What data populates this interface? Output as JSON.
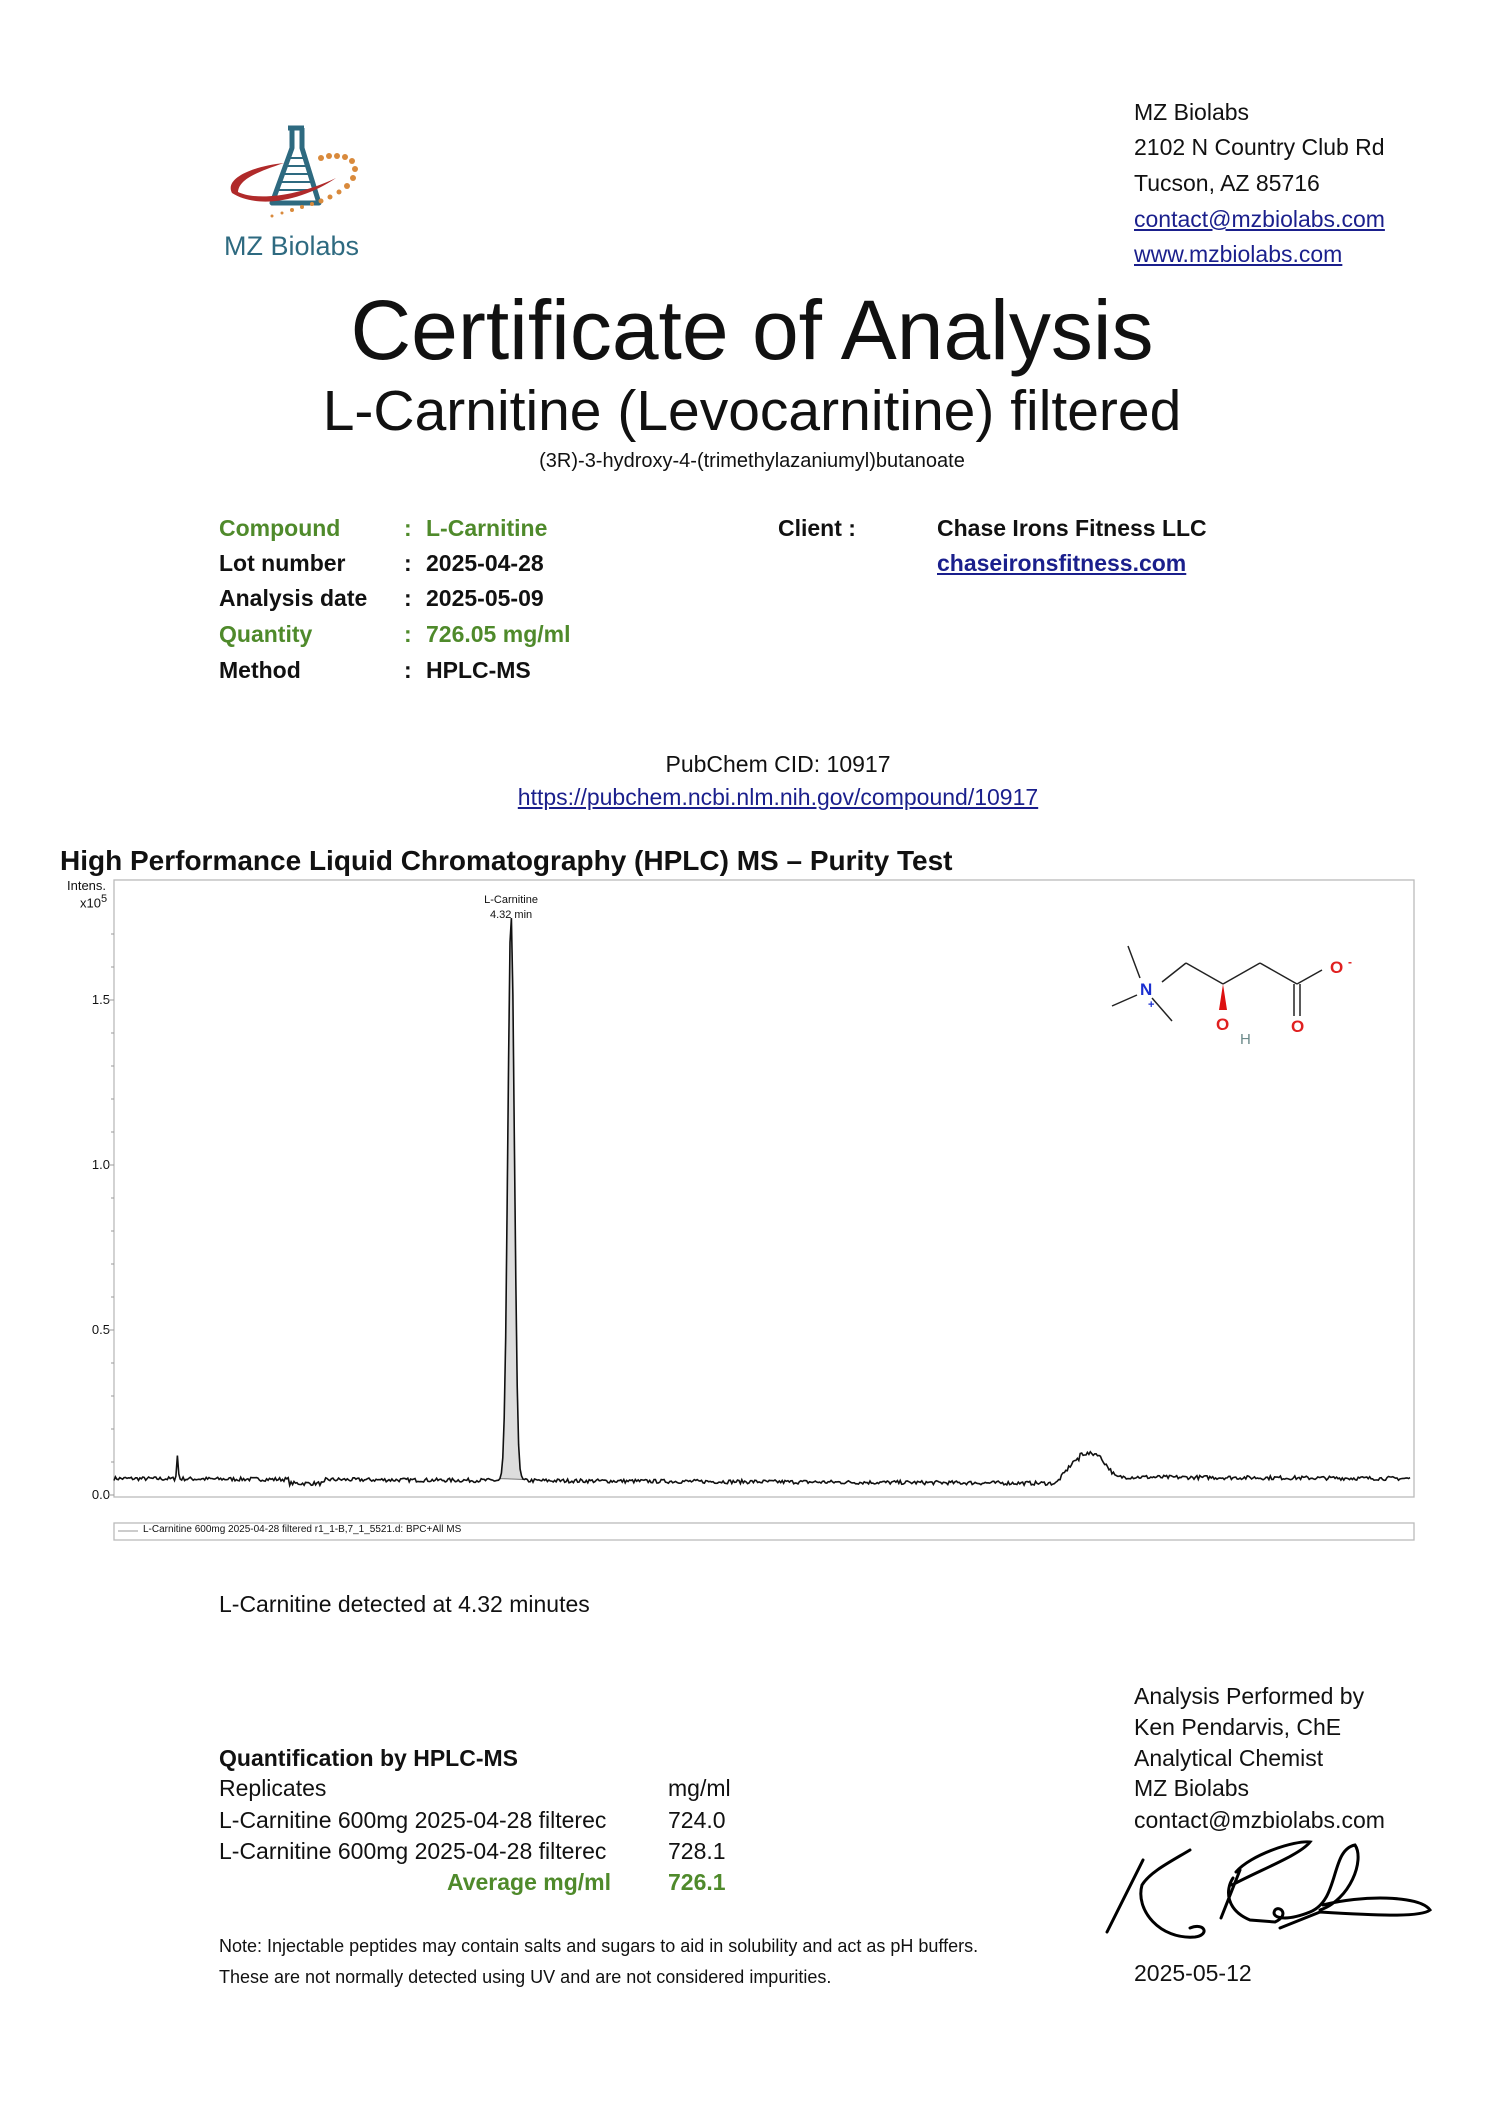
{
  "company": {
    "logo_text": "MZ Biolabs",
    "address_lines": [
      "MZ Biolabs",
      "2102 N Country Club Rd",
      "Tucson, AZ 85716"
    ],
    "email": "contact@mzbiolabs.com",
    "website": "www.mzbiolabs.com"
  },
  "header": {
    "title": "Certificate of Analysis",
    "subtitle": "L-Carnitine (Levocarnitine) filtered",
    "iupac": "(3R)-3-hydroxy-4-(trimethylazaniumyl)butanoate"
  },
  "info": [
    {
      "label": "Compound",
      "value": "L-Carnitine",
      "highlight": true
    },
    {
      "label": "Lot number",
      "value": "2025-04-28",
      "highlight": false
    },
    {
      "label": "Analysis date",
      "value": "2025-05-09",
      "highlight": false
    },
    {
      "label": "Quantity",
      "value": "726.05 mg/ml",
      "highlight": true
    },
    {
      "label": "Method",
      "value": "HPLC-MS",
      "highlight": false
    }
  ],
  "separator": ":",
  "client": {
    "label": "Client :",
    "name": "Chase Irons Fitness LLC",
    "website": "chaseironsfitness.com"
  },
  "pubchem": {
    "cid": "PubChem CID: 10917",
    "url": "https://pubchem.ncbi.nlm.nih.gov/compound/10917"
  },
  "section_title": "High Performance Liquid Chromatography (HPLC) MS – Purity Test",
  "chart_data": {
    "type": "line",
    "ylabel": "Intens.",
    "y_multiplier": "x10",
    "y_multiplier_exp": "5",
    "ylim": [
      0,
      1.8
    ],
    "yticks": [
      "0.0",
      "0.5",
      "1.0",
      "1.5"
    ],
    "xlim": [
      0,
      14.1
    ],
    "baseline": 0.05,
    "peaks": [
      {
        "x": 0.69,
        "y": 0.12
      },
      {
        "x": 4.32,
        "y": 1.76,
        "label": "L-Carnitine",
        "sublabel": "4.32 min",
        "shaded": true
      },
      {
        "x": 10.5,
        "y": 0.14
      }
    ],
    "legend": "L-Carnitine 600mg 2025-04-28 filtered r1_1-B,7_1_5521.d: BPC+All MS",
    "molecule": {
      "atoms": [
        "N",
        "+",
        "O",
        "-",
        "O",
        "H",
        "O"
      ]
    }
  },
  "detected_text": "L-Carnitine detected at 4.32 minutes",
  "quantification": {
    "title": "Quantification by HPLC-MS",
    "col_replicates": "Replicates",
    "col_unit": "mg/ml",
    "rows": [
      {
        "name": "L-Carnitine 600mg 2025-04-28 filterec",
        "value": "724.0"
      },
      {
        "name": "L-Carnitine 600mg 2025-04-28 filterec",
        "value": "728.1"
      }
    ],
    "average_label": "Average mg/ml",
    "average_value": "726.1"
  },
  "note_lines": [
    "Note: Injectable peptides may contain salts and sugars to aid in solubility and act as pH buffers.",
    "These are not normally detected using UV and are not considered impurities."
  ],
  "analyst": {
    "lines": [
      "Analysis Performed by",
      "Ken Pendarvis, ChE",
      "Analytical Chemist",
      "MZ Biolabs",
      "contact@mzbiolabs.com"
    ],
    "signature_text": "Ken Pendarvis",
    "date": "2025-05-12"
  },
  "colors": {
    "green": "#4f8a2b",
    "link": "#1a1f8c",
    "logo_teal": "#2e6a80",
    "logo_red": "#b02a2a",
    "logo_orange": "#d98a3c"
  }
}
